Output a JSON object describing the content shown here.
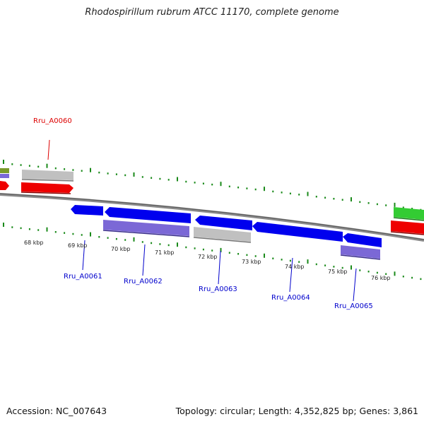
{
  "title": "Rhodospirillum rubrum ATCC 11170, complete genome",
  "footer": {
    "accession": "Accession: NC_007643",
    "topology": "Topology: circular; Length: 4,352,825 bp; Genes: 3,861"
  },
  "colors": {
    "background": "#ffffff",
    "backbone": "#8a8a8a",
    "tick": "#1a8a1a",
    "cds": "#0000ee",
    "feature": "#7b68d6",
    "gene": "#c0c0c0",
    "red_feature": "#ee0000",
    "green_feature": "#33cc33",
    "olive_feature": "#7a9a2a",
    "highlight_label": "#dd0000",
    "label": "#0000cc"
  },
  "ruler_labels": [
    "68 kbp",
    "69 kbp",
    "70 kbp",
    "71 kbp",
    "72 kbp",
    "73 kbp",
    "74 kbp",
    "75 kbp",
    "76 kbp"
  ],
  "gene_labels": [
    "Rru_A0060",
    "Rru_A0061",
    "Rru_A0062",
    "Rru_A0063",
    "Rru_A0064",
    "Rru_A0065"
  ]
}
